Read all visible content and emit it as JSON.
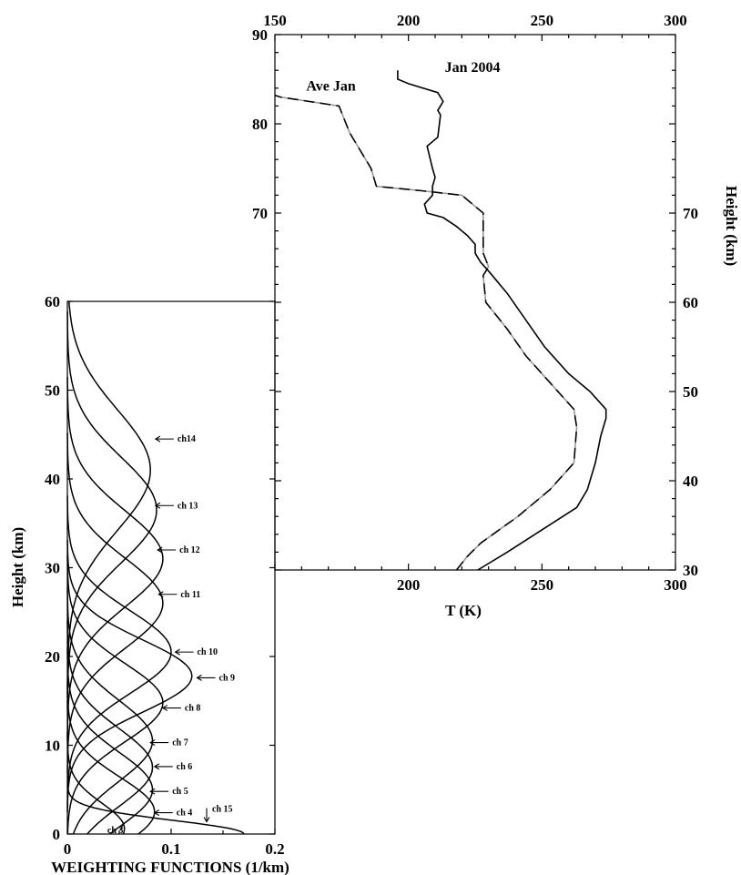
{
  "chart_data": [
    {
      "type": "line",
      "xlabel": "WEIGHTING FUNCTIONS (1/km)",
      "ylabel": "Height (km)",
      "xlim": [
        0,
        0.2
      ],
      "ylim": [
        0,
        60
      ],
      "x_ticks": [
        "0",
        "0.1",
        "0.2"
      ],
      "y_ticks": [
        "0",
        "10",
        "20",
        "30",
        "40",
        "50",
        "60"
      ],
      "series": [
        {
          "name": "ch 3",
          "peak_height": 0.6,
          "peak_value": 0.055,
          "halfwidth": 3.4
        },
        {
          "name": "ch 15",
          "peak_height": 0.0,
          "peak_value": 0.17,
          "halfwidth": 1.8
        },
        {
          "name": "ch 4",
          "peak_height": 2.5,
          "peak_value": 0.084,
          "halfwidth": 4.6
        },
        {
          "name": "ch 5",
          "peak_height": 5.0,
          "peak_value": 0.082,
          "halfwidth": 5.0
        },
        {
          "name": "ch 6",
          "peak_height": 7.5,
          "peak_value": 0.082,
          "halfwidth": 5.2
        },
        {
          "name": "ch 7",
          "peak_height": 10.5,
          "peak_value": 0.082,
          "halfwidth": 5.4
        },
        {
          "name": "ch 8",
          "peak_height": 14.8,
          "peak_value": 0.092,
          "halfwidth": 5.2
        },
        {
          "name": "ch 9",
          "peak_height": 17.8,
          "peak_value": 0.12,
          "halfwidth": 4.8
        },
        {
          "name": "ch 10",
          "peak_height": 20.5,
          "peak_value": 0.1,
          "halfwidth": 5.5
        },
        {
          "name": "ch 11",
          "peak_height": 26.0,
          "peak_value": 0.092,
          "halfwidth": 6.0
        },
        {
          "name": "ch 12",
          "peak_height": 31.0,
          "peak_value": 0.092,
          "halfwidth": 6.4
        },
        {
          "name": "ch 13",
          "peak_height": 36.5,
          "peak_value": 0.086,
          "halfwidth": 7.0
        },
        {
          "name": "ch14",
          "peak_height": 41.0,
          "peak_value": 0.08,
          "halfwidth": 8.0
        }
      ],
      "annotations": [
        {
          "text": "ch14",
          "x": 0.085,
          "y": 44.5
        },
        {
          "text": "ch 13",
          "x": 0.085,
          "y": 37.0
        },
        {
          "text": "ch 12",
          "x": 0.087,
          "y": 32.0
        },
        {
          "text": "ch 11",
          "x": 0.088,
          "y": 27.0
        },
        {
          "text": "ch 10",
          "x": 0.104,
          "y": 20.5
        },
        {
          "text": "ch 9",
          "x": 0.125,
          "y": 17.6
        },
        {
          "text": "ch 8",
          "x": 0.092,
          "y": 14.2
        },
        {
          "text": "ch 7",
          "x": 0.08,
          "y": 10.3
        },
        {
          "text": "ch 6",
          "x": 0.084,
          "y": 7.6
        },
        {
          "text": "ch 5",
          "x": 0.08,
          "y": 4.8
        },
        {
          "text": "ch 4",
          "x": 0.084,
          "y": 2.4
        },
        {
          "text": "ch 15",
          "x": 0.143,
          "y": 2.1
        },
        {
          "text": "ch 3",
          "x": 0.042,
          "y": 0.2
        }
      ]
    },
    {
      "type": "line",
      "xlabel": "T (K)",
      "ylabel": "Height (km)",
      "xlim": [
        150,
        300
      ],
      "ylim": [
        30,
        90
      ],
      "x_ticks": [
        "150",
        "200",
        "250",
        "300"
      ],
      "x_ticks_bottom": [
        "200",
        "250",
        "300"
      ],
      "y_ticks_left": [
        "70",
        "80",
        "90"
      ],
      "y_ticks_right": [
        "30",
        "40",
        "50",
        "60",
        "70"
      ],
      "series": [
        {
          "name": "Jan 2004",
          "style": "solid",
          "x": [
            226,
            237,
            250,
            263,
            267,
            270,
            272,
            274,
            274,
            268,
            260,
            251,
            244,
            237,
            230,
            227,
            225,
            225,
            222,
            218,
            213,
            207,
            206,
            209,
            209,
            210,
            209,
            207,
            211,
            212,
            211,
            213,
            211,
            200,
            196,
            196
          ],
          "y": [
            30,
            32,
            34.5,
            37,
            39,
            42,
            45,
            47,
            48,
            50,
            52,
            55,
            58,
            61,
            63.5,
            64.5,
            65.5,
            66.5,
            67.5,
            68.5,
            69.5,
            70,
            71,
            72,
            73,
            74,
            75,
            77.5,
            78.5,
            81,
            81.5,
            82.5,
            83.5,
            84.5,
            85,
            86
          ]
        },
        {
          "name": "Ave Jan",
          "style": "dashed",
          "x": [
            218,
            222,
            227,
            241,
            253,
            262,
            263,
            262,
            253,
            244,
            237,
            229,
            228,
            230,
            228,
            228,
            220,
            205,
            188,
            186,
            178,
            174,
            152,
            150
          ],
          "y": [
            30,
            31.5,
            33,
            36,
            39,
            42,
            46,
            48,
            51,
            54,
            57,
            60,
            63,
            64,
            65.5,
            70,
            72,
            72.5,
            73,
            75,
            79,
            82,
            83,
            83.2
          ]
        }
      ],
      "annotations": [
        {
          "text": "Ave Jan",
          "x": 171,
          "y": 83.7
        },
        {
          "text": "Jan 2004",
          "x": 224,
          "y": 85.8
        }
      ]
    }
  ]
}
